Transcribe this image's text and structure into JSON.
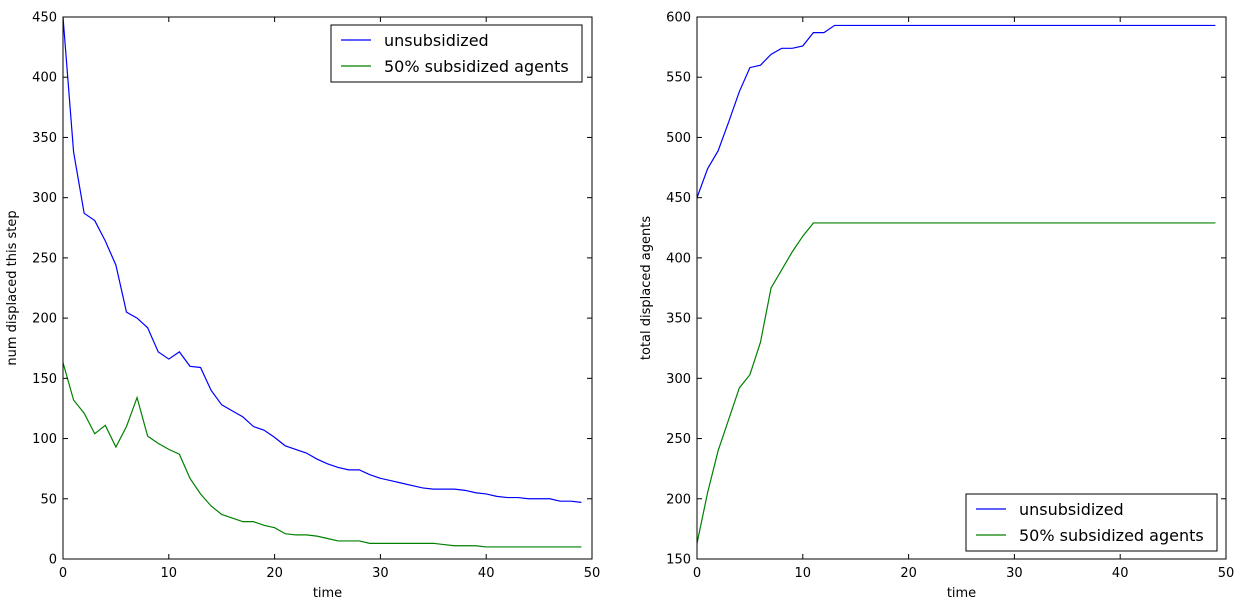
{
  "chart_data": [
    {
      "type": "line",
      "title": "",
      "xlabel": "time",
      "ylabel": "num displaced this step",
      "xlim": [
        0,
        50
      ],
      "ylim": [
        0,
        450
      ],
      "xticks": [
        0,
        10,
        20,
        30,
        40,
        50
      ],
      "yticks": [
        0,
        50,
        100,
        150,
        200,
        250,
        300,
        350,
        400,
        450
      ],
      "grid": false,
      "legend_position": "top-right",
      "x": [
        0,
        1,
        2,
        3,
        4,
        5,
        6,
        7,
        8,
        9,
        10,
        11,
        12,
        13,
        14,
        15,
        16,
        17,
        18,
        19,
        20,
        21,
        22,
        23,
        24,
        25,
        26,
        27,
        28,
        29,
        30,
        31,
        32,
        33,
        34,
        35,
        36,
        37,
        38,
        39,
        40,
        41,
        42,
        43,
        44,
        45,
        46,
        47,
        48,
        49
      ],
      "series": [
        {
          "name": "unsubsidized",
          "color": "#0000ff",
          "values": [
            450,
            338,
            287,
            281,
            264,
            244,
            205,
            200,
            192,
            172,
            166,
            172,
            160,
            159,
            140,
            128,
            123,
            118,
            110,
            107,
            101,
            94,
            91,
            88,
            83,
            79,
            76,
            74,
            74,
            70,
            67,
            65,
            63,
            61,
            59,
            58,
            58,
            58,
            57,
            55,
            54,
            52,
            51,
            51,
            50,
            50,
            50,
            48,
            48,
            47
          ]
        },
        {
          "name": "50% subsidized agents",
          "color": "#008000",
          "values": [
            163,
            132,
            121,
            104,
            111,
            93,
            110,
            134,
            102,
            96,
            91,
            87,
            67,
            54,
            44,
            37,
            34,
            31,
            31,
            28,
            26,
            21,
            20,
            20,
            19,
            17,
            15,
            15,
            15,
            13,
            13,
            13,
            13,
            13,
            13,
            13,
            12,
            11,
            11,
            11,
            10,
            10,
            10,
            10,
            10,
            10,
            10,
            10,
            10,
            10
          ]
        }
      ]
    },
    {
      "type": "line",
      "title": "",
      "xlabel": "time",
      "ylabel": "total displaced agents",
      "xlim": [
        0,
        50
      ],
      "ylim": [
        150,
        600
      ],
      "xticks": [
        0,
        10,
        20,
        30,
        40,
        50
      ],
      "yticks": [
        150,
        200,
        250,
        300,
        350,
        400,
        450,
        500,
        550,
        600
      ],
      "grid": false,
      "legend_position": "bottom-right",
      "x": [
        0,
        1,
        2,
        3,
        4,
        5,
        6,
        7,
        8,
        9,
        10,
        11,
        12,
        13,
        14,
        15,
        16,
        17,
        18,
        19,
        20,
        21,
        22,
        23,
        24,
        25,
        26,
        27,
        28,
        29,
        30,
        31,
        32,
        33,
        34,
        35,
        36,
        37,
        38,
        39,
        40,
        41,
        42,
        43,
        44,
        45,
        46,
        47,
        48,
        49
      ],
      "series": [
        {
          "name": "unsubsidized",
          "color": "#0000ff",
          "values": [
            450,
            474,
            489,
            513,
            538,
            558,
            560,
            569,
            574,
            574,
            576,
            587,
            587,
            593,
            593,
            593,
            593,
            593,
            593,
            593,
            593,
            593,
            593,
            593,
            593,
            593,
            593,
            593,
            593,
            593,
            593,
            593,
            593,
            593,
            593,
            593,
            593,
            593,
            593,
            593,
            593,
            593,
            593,
            593,
            593,
            593,
            593,
            593,
            593,
            593
          ]
        },
        {
          "name": "50% subsidized agents",
          "color": "#008000",
          "values": [
            163,
            205,
            240,
            266,
            292,
            303,
            330,
            375,
            390,
            405,
            418,
            429,
            429,
            429,
            429,
            429,
            429,
            429,
            429,
            429,
            429,
            429,
            429,
            429,
            429,
            429,
            429,
            429,
            429,
            429,
            429,
            429,
            429,
            429,
            429,
            429,
            429,
            429,
            429,
            429,
            429,
            429,
            429,
            429,
            429,
            429,
            429,
            429,
            429,
            429
          ]
        }
      ]
    }
  ]
}
